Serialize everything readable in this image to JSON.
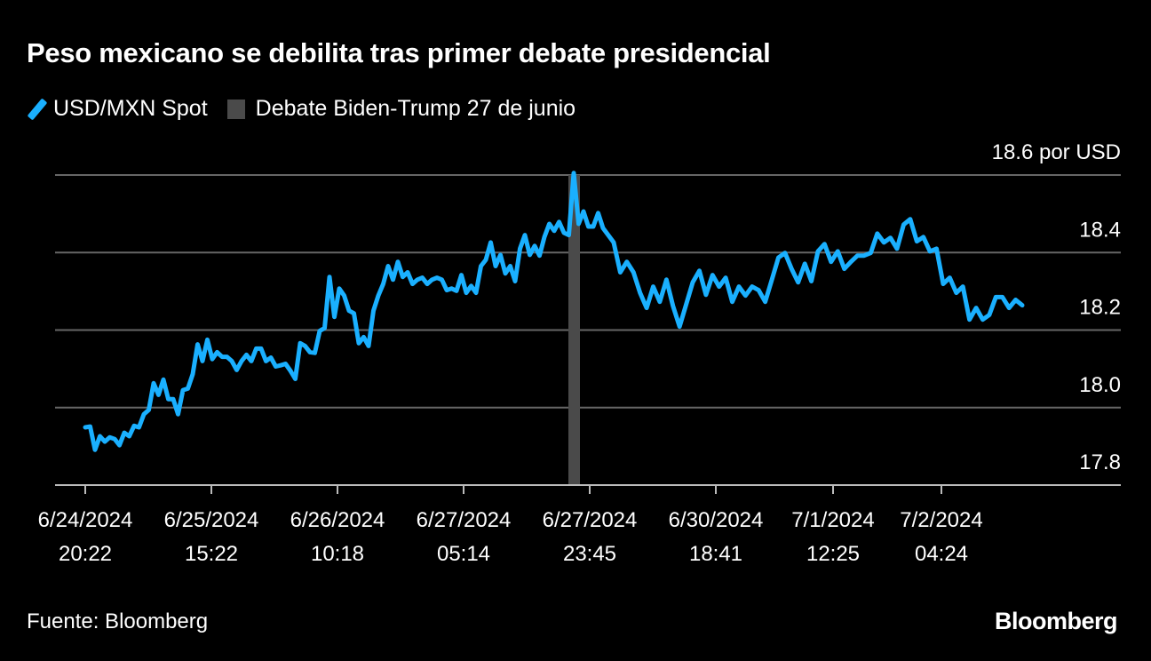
{
  "chart_data": {
    "type": "line",
    "title": "Peso mexicano se debilita tras primer debate presidencial",
    "legend": {
      "placement": "top-left",
      "entries": [
        "USD/MXN Spot",
        "Debate Biden-Trump 27 de junio"
      ]
    },
    "ylabel": "18.6 por USD",
    "ylim": [
      17.8,
      18.6
    ],
    "yticks": [
      "17.8",
      "18.0",
      "18.2",
      "18.4",
      "18.6 por USD"
    ],
    "ytick_values": [
      17.8,
      18.0,
      18.2,
      18.4,
      18.6
    ],
    "xticks": [
      {
        "date": "6/24/2024",
        "time": "20:22"
      },
      {
        "date": "6/25/2024",
        "time": "15:22"
      },
      {
        "date": "6/26/2024",
        "time": "10:18"
      },
      {
        "date": "6/27/2024",
        "time": "05:14"
      },
      {
        "date": "6/27/2024",
        "time": "23:45"
      },
      {
        "date": "6/30/2024",
        "time": "18:41"
      },
      {
        "date": "7/1/2024",
        "time": "12:25"
      },
      {
        "date": "7/2/2024",
        "time": "04:24"
      }
    ],
    "grid": true,
    "colors": {
      "series": "#1ab0ff",
      "event_bar": "#4a4a4a",
      "grid": "#666666"
    },
    "series": [
      {
        "name": "USD/MXN Spot",
        "values": [
          17.949,
          17.951,
          17.891,
          17.926,
          17.912,
          17.923,
          17.919,
          17.903,
          17.935,
          17.926,
          17.953,
          17.949,
          17.983,
          17.994,
          18.063,
          18.033,
          18.072,
          18.022,
          18.022,
          17.983,
          18.045,
          18.049,
          18.086,
          18.163,
          18.12,
          18.175,
          18.125,
          18.143,
          18.131,
          18.131,
          18.12,
          18.097,
          18.12,
          18.136,
          18.12,
          18.152,
          18.152,
          18.12,
          18.129,
          18.106,
          18.109,
          18.113,
          18.095,
          18.074,
          18.166,
          18.159,
          18.143,
          18.141,
          18.198,
          18.205,
          18.337,
          18.234,
          18.307,
          18.289,
          18.25,
          18.243,
          18.166,
          18.182,
          18.159,
          18.25,
          18.289,
          18.319,
          18.365,
          18.33,
          18.376,
          18.337,
          18.349,
          18.319,
          18.33,
          18.335,
          18.319,
          18.33,
          18.335,
          18.33,
          18.303,
          18.307,
          18.301,
          18.342,
          18.296,
          18.314,
          18.296,
          18.365,
          18.381,
          18.426,
          18.365,
          18.394,
          18.346,
          18.365,
          18.326,
          18.41,
          18.445,
          18.394,
          18.417,
          18.392,
          18.44,
          18.474,
          18.456,
          18.479,
          18.451,
          18.445,
          18.605,
          18.474,
          18.506,
          18.467,
          18.467,
          18.502,
          18.463,
          18.426,
          18.349,
          18.376,
          18.349,
          18.296,
          18.257,
          18.312,
          18.273,
          18.33,
          18.262,
          18.209,
          18.266,
          18.323,
          18.353,
          18.291,
          18.342,
          18.312,
          18.335,
          18.273,
          18.312,
          18.289,
          18.312,
          18.303,
          18.273,
          18.33,
          18.387,
          18.399,
          18.358,
          18.323,
          18.371,
          18.326,
          18.403,
          18.422,
          18.376,
          18.403,
          18.358,
          18.376,
          18.392,
          18.392,
          18.399,
          18.449,
          18.426,
          18.438,
          18.41,
          18.472,
          18.486,
          18.429,
          18.44,
          18.403,
          18.41,
          18.319,
          18.335,
          18.296,
          18.312,
          18.227,
          18.257,
          18.227,
          18.239,
          18.285,
          18.285,
          18.257,
          18.278,
          18.264
        ]
      }
    ],
    "event": {
      "label": "Debate Biden-Trump 27 de junio"
    }
  },
  "footer": {
    "source": "Fuente: Bloomberg",
    "logo": "Bloomberg"
  }
}
